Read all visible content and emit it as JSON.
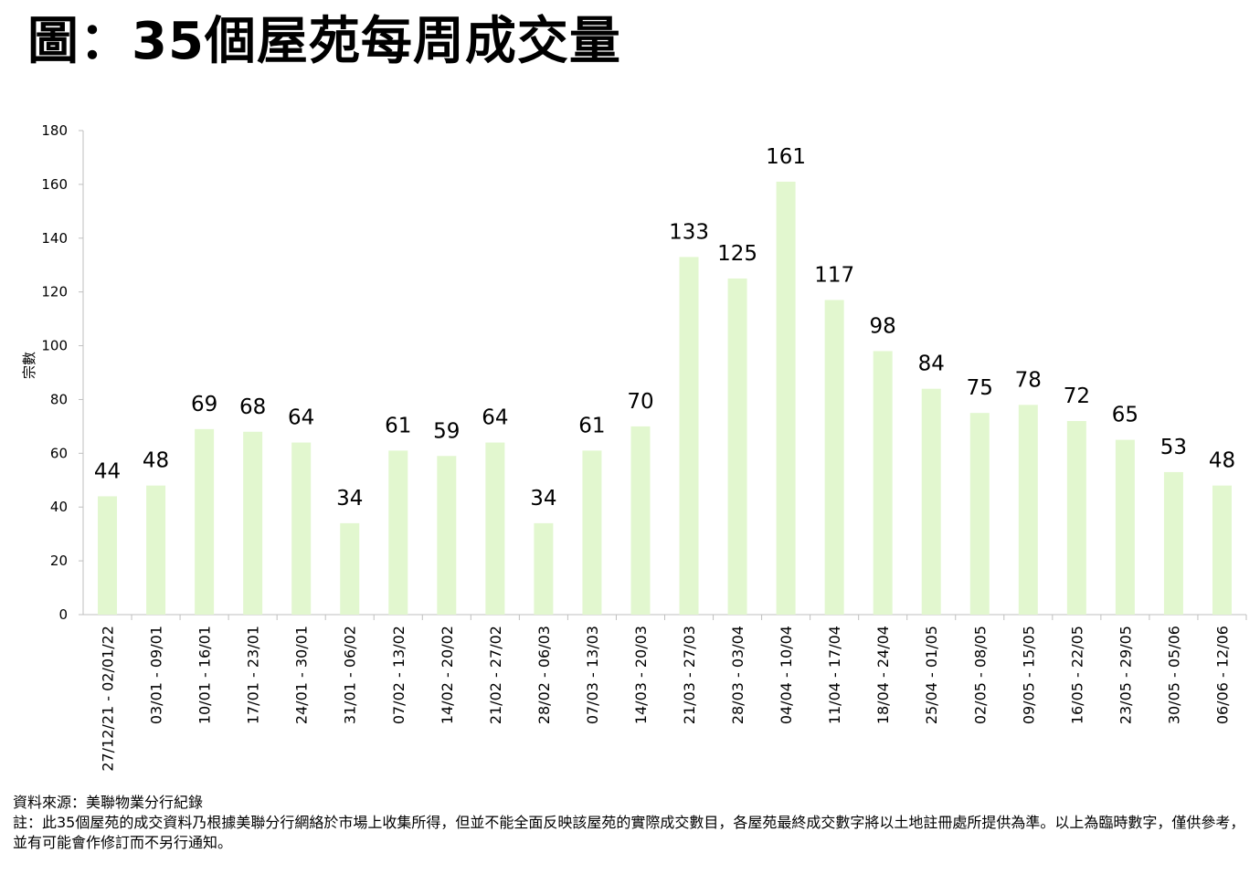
{
  "title": "圖：35個屋苑每周成交量",
  "footer": {
    "source": "資料來源：美聯物業分行紀錄",
    "note": "註：此35個屋苑的成交資料乃根據美聯分行網絡於市場上收集所得，但並不能全面反映該屋苑的實際成交數目，各屋苑最終成交數字將以土地註冊處所提供為準。以上為臨時數字，僅供參考，並有可能會作修訂而不另行通知。"
  },
  "chart_data": {
    "type": "bar",
    "title": "圖：35個屋苑每周成交量",
    "xlabel": "",
    "ylabel": "宗數",
    "ylim": [
      0,
      180
    ],
    "yticks": [
      0,
      20,
      40,
      60,
      80,
      100,
      120,
      140,
      160,
      180
    ],
    "grid": false,
    "legend": "none",
    "bar_color": "#e2f7cf",
    "categories": [
      "27/12/21 - 02/01/22",
      "03/01 - 09/01",
      "10/01 - 16/01",
      "17/01 - 23/01",
      "24/01 - 30/01",
      "31/01 - 06/02",
      "07/02 - 13/02",
      "14/02 - 20/02",
      "21/02 - 27/02",
      "28/02 - 06/03",
      "07/03 - 13/03",
      "14/03 - 20/03",
      "21/03 - 27/03",
      "28/03 - 03/04",
      "04/04 - 10/04",
      "11/04 - 17/04",
      "18/04 - 24/04",
      "25/04 - 01/05",
      "02/05 - 08/05",
      "09/05 - 15/05",
      "16/05 - 22/05",
      "23/05 - 29/05",
      "30/05 - 05/06",
      "06/06 - 12/06"
    ],
    "values": [
      44,
      48,
      69,
      68,
      64,
      34,
      61,
      59,
      64,
      34,
      61,
      70,
      133,
      125,
      161,
      117,
      98,
      84,
      75,
      78,
      72,
      65,
      53,
      48
    ]
  }
}
